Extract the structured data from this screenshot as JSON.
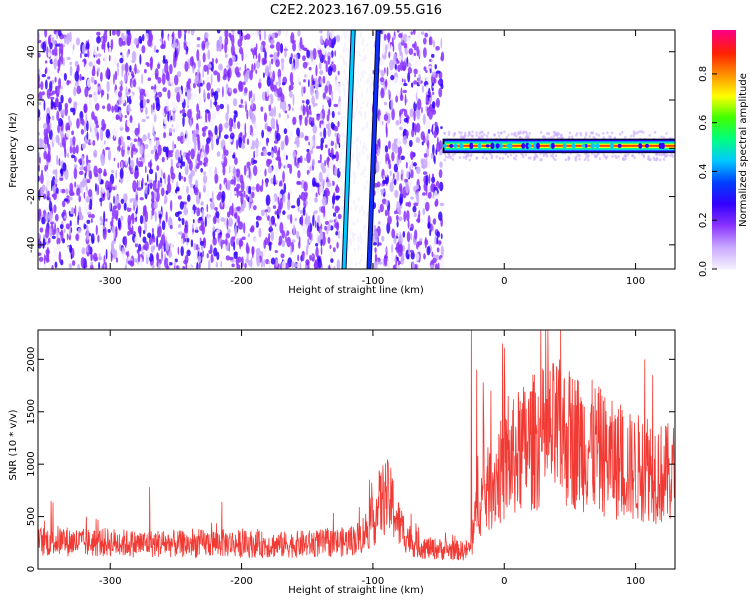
{
  "title": "C2E2.2023.167.09.55.G16",
  "colors": {
    "snr_line": "#f23a34",
    "spectrum_dots": "#7a2cff",
    "colormap": [
      "#f5f0ff",
      "#c8a8ff",
      "#8a33ff",
      "#3300ff",
      "#0040ff",
      "#00c8ff",
      "#00ff80",
      "#40ff00",
      "#ffff00",
      "#ff9000",
      "#ff2000",
      "#ff0080"
    ]
  },
  "chart_data": [
    {
      "type": "heatmap",
      "xlabel": "Height of straight line (km)",
      "ylabel": "Frequency (Hz)",
      "xlim": [
        -355,
        130
      ],
      "ylim": [
        -50,
        49
      ],
      "xticks": [
        -300,
        -200,
        -100,
        0,
        100
      ],
      "yticks": [
        -40,
        -20,
        0,
        20,
        40
      ],
      "grid": false,
      "noise_region_x": [
        -355,
        -47
      ],
      "signal_band": {
        "x": [
          -47,
          130
        ],
        "frequency_center": 1,
        "frequency_halfwidth": 3
      },
      "diagonal_lines": [
        {
          "x_at_bottom": -122,
          "x_at_top": -115,
          "color": "cyan"
        },
        {
          "x_at_bottom": -103,
          "x_at_top": -96,
          "color": "blue"
        }
      ],
      "gap_region_x": [
        -125,
        -100
      ],
      "colorbar": {
        "label": "Normalized spectral amplitude",
        "range": [
          0.0,
          0.98
        ],
        "ticks": [
          "0.0",
          "0.2",
          "0.4",
          "0.6",
          "0.8"
        ]
      }
    },
    {
      "type": "line",
      "xlabel": "Height of straight line (km)",
      "ylabel": "SNR (10 * v/v)",
      "xlim": [
        -355,
        130
      ],
      "ylim": [
        0,
        2280
      ],
      "xticks": [
        -300,
        -200,
        -100,
        0,
        100
      ],
      "yticks": [
        0,
        500,
        1000,
        1500,
        2000
      ],
      "grid": false,
      "series": [
        {
          "x": [
            -355,
            -340,
            -320,
            -300,
            -280,
            -260,
            -240,
            -220,
            -200,
            -180,
            -160,
            -140,
            -120,
            -110,
            -100,
            -95,
            -90,
            -85,
            -80,
            -70,
            -60,
            -50,
            -40,
            -30,
            -25,
            -22,
            -20,
            -18,
            -15,
            -10,
            -5,
            0,
            10,
            20,
            30,
            40,
            50,
            60,
            70,
            80,
            90,
            100,
            110,
            120,
            130
          ],
          "values": [
            260,
            270,
            250,
            255,
            240,
            245,
            235,
            250,
            240,
            230,
            235,
            245,
            260,
            300,
            450,
            620,
            700,
            600,
            420,
            250,
            200,
            190,
            180,
            175,
            200,
            450,
            800,
            650,
            700,
            800,
            900,
            950,
            1100,
            1200,
            1250,
            1300,
            1250,
            1200,
            1150,
            1050,
            1000,
            950,
            1000,
            900,
            900
          ],
          "peaks": [
            {
              "x": -25,
              "value": 2280
            },
            {
              "x": -21,
              "value": 1900
            },
            {
              "x": -16,
              "value": 1780
            },
            {
              "x": 0,
              "value": 2110
            },
            {
              "x": 3,
              "value": 1650
            },
            {
              "x": 107,
              "value": 2000
            },
            {
              "x": 113,
              "value": 1850
            },
            {
              "x": -270,
              "value": 780
            },
            {
              "x": -345,
              "value": 650
            },
            {
              "x": -215,
              "value": 640
            }
          ]
        }
      ]
    }
  ]
}
